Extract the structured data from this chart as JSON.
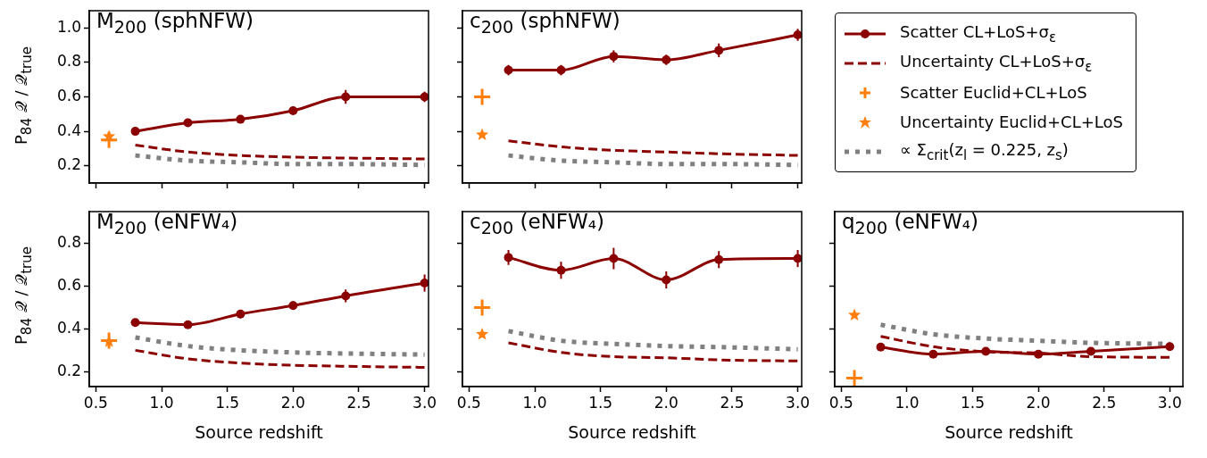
{
  "chart_data": [
    {
      "type": "line",
      "title": "M$_{200}$ (sphNFW)",
      "ylabel": "P$_{84}$ 𝒬 / 𝒬$_{true}$",
      "x": [
        0.6,
        0.8,
        1.2,
        1.6,
        2.0,
        2.4,
        3.0
      ],
      "xlim": [
        0.45,
        3.03
      ],
      "xticks": [
        0.5,
        1,
        1.5,
        2,
        2.5,
        3
      ],
      "ylim": [
        0.1,
        1.1
      ],
      "yticks": [
        0.2,
        0.4,
        0.6,
        0.8,
        {
          "value": 1,
          "label": "1.0"
        }
      ],
      "tick_labels": "y",
      "series": [
        {
          "color": "#8b0000",
          "marker": "circle",
          "line_style": "solid",
          "values": [
            null,
            0.4,
            0.45,
            0.47,
            0.52,
            0.6,
            0.6
          ],
          "errors": [
            null,
            0.015,
            0.015,
            0.02,
            0.02,
            0.04,
            0.03
          ]
        },
        {
          "color": "#8b0000",
          "marker": "none",
          "line_style": "dashed",
          "values": [
            null,
            0.32,
            0.28,
            0.26,
            0.25,
            0.245,
            0.24
          ]
        },
        {
          "type": "scatter",
          "color": "#ff7f0e",
          "marker": "cross",
          "values": [
            0.35,
            null,
            null,
            null,
            null,
            null,
            null
          ]
        },
        {
          "type": "scatter",
          "color": "#ff7f0e",
          "marker": "star",
          "values": [
            0.37,
            null,
            null,
            null,
            null,
            null,
            null
          ]
        },
        {
          "color": "#808080",
          "marker": "none",
          "line_style": "dotted",
          "values": [
            null,
            0.26,
            0.23,
            0.22,
            0.21,
            0.21,
            0.205
          ]
        }
      ]
    },
    {
      "type": "line",
      "title": "M$_{200}$ (eNFW₄)",
      "ylabel": "P$_{84}$ 𝒬 / 𝒬$_{true}$",
      "xlabel": "Source redshift",
      "x": [
        0.6,
        0.8,
        1.2,
        1.6,
        2.0,
        2.4,
        3.0
      ],
      "xlim": [
        0.45,
        3.03
      ],
      "xticks": [
        0.5,
        {
          "value": 1,
          "label": "1.0"
        },
        1.5,
        {
          "value": 2,
          "label": "2.0"
        },
        2.5,
        {
          "value": 3,
          "label": "3.0"
        }
      ],
      "ylim": [
        0.13,
        0.95
      ],
      "yticks": [
        0.2,
        0.4,
        0.6,
        0.8
      ],
      "series": [
        {
          "color": "#8b0000",
          "marker": "circle",
          "line_style": "solid",
          "values": [
            null,
            0.43,
            0.42,
            0.47,
            0.51,
            0.555,
            0.615
          ],
          "errors": [
            null,
            0.015,
            0.015,
            0.02,
            0.02,
            0.03,
            0.04
          ]
        },
        {
          "color": "#8b0000",
          "marker": "none",
          "line_style": "dashed",
          "values": [
            null,
            0.3,
            0.26,
            0.24,
            0.23,
            0.225,
            0.22
          ]
        },
        {
          "type": "scatter",
          "color": "#ff7f0e",
          "marker": "cross",
          "values": [
            0.345,
            null,
            null,
            null,
            null,
            null,
            null
          ]
        },
        {
          "type": "scatter",
          "color": "#ff7f0e",
          "marker": "star",
          "values": [
            0.34,
            null,
            null,
            null,
            null,
            null,
            null
          ]
        },
        {
          "color": "#808080",
          "marker": "none",
          "line_style": "dotted",
          "values": [
            null,
            0.36,
            0.32,
            0.3,
            0.29,
            0.285,
            0.28
          ]
        }
      ]
    },
    {
      "type": "line",
      "title": "c$_{200}$ (sphNFW)",
      "x": [
        0.6,
        0.8,
        1.2,
        1.6,
        2.0,
        2.4,
        3.0
      ],
      "xlim": [
        0.45,
        3.03
      ],
      "xticks": [
        0.5,
        1,
        1.5,
        2,
        2.5,
        3
      ],
      "ylim": [
        0.1,
        1.1
      ],
      "yticks": [
        0.2,
        0.4,
        0.6,
        0.8,
        1
      ],
      "tick_labels": false,
      "legend": "right",
      "series": [
        {
          "name": "Scatter CL+LoS+σ$_{ε}$",
          "color": "#8b0000",
          "marker": "circle",
          "line_style": "solid",
          "values": [
            null,
            0.755,
            0.755,
            0.835,
            0.815,
            0.87,
            0.96
          ],
          "errors": [
            null,
            0.03,
            0.03,
            0.035,
            0.03,
            0.04,
            0.035
          ]
        },
        {
          "name": "Uncertainty CL+LoS+σ$_{ε}$",
          "color": "#8b0000",
          "marker": "none",
          "line_style": "dashed",
          "values": [
            null,
            0.345,
            0.31,
            0.29,
            0.28,
            0.27,
            0.26
          ]
        },
        {
          "name": "Scatter Euclid+CL+LoS",
          "type": "scatter",
          "color": "#ff7f0e",
          "marker": "cross",
          "values": [
            0.6,
            null,
            null,
            null,
            null,
            null,
            null
          ]
        },
        {
          "name": "Uncertainty Euclid+CL+LoS",
          "type": "scatter",
          "color": "#ff7f0e",
          "marker": "star",
          "values": [
            0.38,
            null,
            null,
            null,
            null,
            null,
            null
          ]
        },
        {
          "name": "∝ Σ$_{crit}$(z$_{l}$ = 0.225, z$_{s}$)",
          "color": "#808080",
          "marker": "none",
          "line_style": "dotted",
          "values": [
            null,
            0.26,
            0.23,
            0.22,
            0.21,
            0.21,
            0.205
          ]
        }
      ]
    },
    {
      "type": "line",
      "title": "c$_{200}$ (eNFW₄)",
      "xlabel": "Source redshift",
      "x": [
        0.6,
        0.8,
        1.2,
        1.6,
        2.0,
        2.4,
        3.0
      ],
      "xlim": [
        0.45,
        3.03
      ],
      "xticks": [
        0.5,
        {
          "value": 1,
          "label": "1.0"
        },
        1.5,
        {
          "value": 2,
          "label": "2.0"
        },
        2.5,
        {
          "value": 3,
          "label": "3.0"
        }
      ],
      "ylim": [
        0.13,
        0.95
      ],
      "yticks": [
        0.2,
        0.4,
        0.6,
        0.8
      ],
      "tick_labels": "x",
      "series": [
        {
          "color": "#8b0000",
          "marker": "circle",
          "line_style": "solid",
          "values": [
            null,
            0.735,
            0.675,
            0.73,
            0.63,
            0.725,
            0.73
          ],
          "errors": [
            null,
            0.035,
            0.04,
            0.05,
            0.04,
            0.04,
            0.04
          ]
        },
        {
          "color": "#8b0000",
          "marker": "none",
          "line_style": "dashed",
          "values": [
            null,
            0.335,
            0.29,
            0.27,
            0.265,
            0.255,
            0.25
          ]
        },
        {
          "type": "scatter",
          "color": "#ff7f0e",
          "marker": "cross",
          "values": [
            0.5,
            null,
            null,
            null,
            null,
            null,
            null
          ]
        },
        {
          "type": "scatter",
          "color": "#ff7f0e",
          "marker": "star",
          "values": [
            0.375,
            null,
            null,
            null,
            null,
            null,
            null
          ]
        },
        {
          "color": "#808080",
          "marker": "none",
          "line_style": "dotted",
          "values": [
            null,
            0.39,
            0.345,
            0.33,
            0.32,
            0.315,
            0.305
          ]
        }
      ]
    },
    {
      "type": "line",
      "title": "q$_{200}$ (eNFW₄)",
      "xlabel": "Source redshift",
      "x": [
        0.6,
        0.8,
        1.2,
        1.6,
        2.0,
        2.4,
        3.0
      ],
      "xlim": [
        0.45,
        3.1
      ],
      "xticks": [
        0.5,
        {
          "value": 1,
          "label": "1.0"
        },
        1.5,
        {
          "value": 2,
          "label": "2.0"
        },
        2.5,
        {
          "value": 3,
          "label": "3.0"
        }
      ],
      "ylim": [
        0.13,
        0.95
      ],
      "yticks": [
        0.2,
        0.4,
        0.6,
        0.8
      ],
      "tick_labels": "x",
      "series": [
        {
          "color": "#8b0000",
          "marker": "circle",
          "line_style": "solid",
          "values": [
            null,
            0.315,
            0.282,
            0.295,
            0.282,
            0.295,
            0.317
          ],
          "errors": [
            null,
            0.015,
            0.01,
            0.01,
            0.01,
            0.01,
            0.01
          ]
        },
        {
          "color": "#8b0000",
          "marker": "none",
          "line_style": "dashed",
          "values": [
            null,
            0.365,
            0.317,
            0.293,
            0.287,
            0.27,
            0.267
          ]
        },
        {
          "type": "scatter",
          "color": "#ff7f0e",
          "marker": "cross",
          "values": [
            0.17,
            null,
            null,
            null,
            null,
            null,
            null
          ]
        },
        {
          "type": "scatter",
          "color": "#ff7f0e",
          "marker": "star",
          "values": [
            0.465,
            null,
            null,
            null,
            null,
            null,
            null
          ]
        },
        {
          "color": "#808080",
          "marker": "none",
          "line_style": "dotted",
          "values": [
            null,
            0.42,
            0.375,
            0.355,
            0.345,
            0.335,
            0.33
          ]
        }
      ]
    }
  ]
}
